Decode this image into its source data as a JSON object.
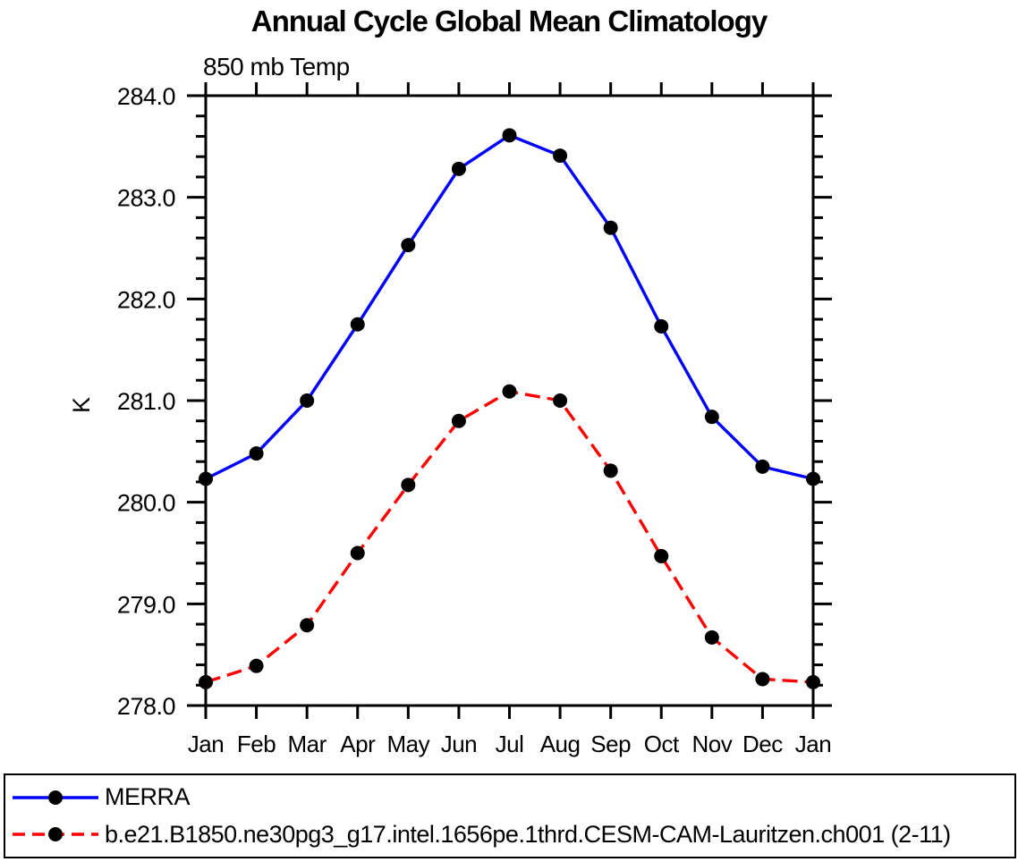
{
  "chart_data": {
    "type": "line",
    "title": "Annual Cycle Global Mean Climatology",
    "subtitle": "850 mb Temp",
    "ylabel": "K",
    "categories": [
      "Jan",
      "Feb",
      "Mar",
      "Apr",
      "May",
      "Jun",
      "Jul",
      "Aug",
      "Sep",
      "Oct",
      "Nov",
      "Dec",
      "Jan"
    ],
    "ylim": [
      278.0,
      284.0
    ],
    "y_major_step": 1.0,
    "y_minor_step": 0.2,
    "y_tick_labels": [
      "278.0",
      "279.0",
      "280.0",
      "281.0",
      "282.0",
      "283.0",
      "284.0"
    ],
    "grid": false,
    "legend_position": "bottom-box",
    "axis_color": "#000000",
    "marker_color": "#000000",
    "series": [
      {
        "name": "MERRA",
        "color": "#0000ff",
        "line_style": "solid",
        "marker": "circle",
        "marker_color": "#000000",
        "values": [
          280.23,
          280.48,
          281.0,
          281.75,
          282.53,
          283.28,
          283.61,
          283.41,
          282.7,
          281.73,
          280.84,
          280.35,
          280.23
        ]
      },
      {
        "name": "b.e21.B1850.ne30pg3_g17.intel.1656pe.1thrd.CESM-CAM-Lauritzen.ch001 (2-11)",
        "color": "#ff0000",
        "line_style": "dashed",
        "marker": "circle",
        "marker_color": "#000000",
        "values": [
          278.23,
          278.39,
          278.79,
          279.5,
          280.17,
          280.8,
          281.09,
          281.0,
          280.31,
          279.47,
          278.67,
          278.26,
          278.23
        ]
      }
    ]
  }
}
